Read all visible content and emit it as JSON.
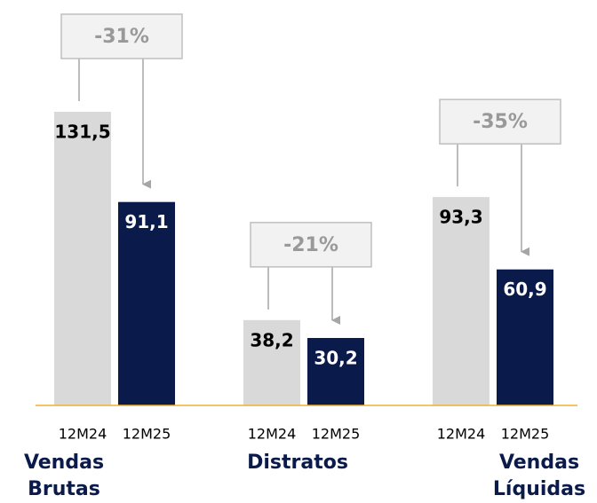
{
  "chart_data": {
    "type": "bar",
    "categories": [
      "Vendas Brutas",
      "Distratos",
      "Vendas Líquidas"
    ],
    "series": [
      {
        "name": "12M24",
        "color": "#d9d9d9",
        "values": [
          131.5,
          38.2,
          93.3
        ],
        "value_labels": [
          "131,5",
          "38,2",
          "93,3"
        ]
      },
      {
        "name": "12M25",
        "color": "#0a1a4a",
        "values": [
          91.1,
          30.2,
          60.9
        ],
        "value_labels": [
          "91,1",
          "30,2",
          "60,9"
        ]
      }
    ],
    "annotations": [
      "-31%",
      "-21%",
      "-35%"
    ]
  }
}
